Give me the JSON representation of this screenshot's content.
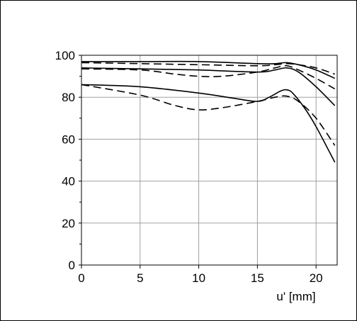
{
  "chart_data": {
    "type": "line",
    "title": "",
    "xlabel": "u' [mm]",
    "ylabel": "",
    "xlim": [
      0,
      21.8
    ],
    "ylim": [
      0,
      100
    ],
    "x_ticks": [
      0,
      5,
      10,
      15,
      20
    ],
    "y_ticks": [
      0,
      20,
      40,
      60,
      80,
      100
    ],
    "grid": true,
    "legend": "none",
    "series": [
      {
        "style": "solid",
        "color": "#000000",
        "x": [
          0,
          5,
          10,
          15,
          16.5,
          17.5,
          18.5,
          20,
          21.6
        ],
        "y": [
          97,
          97,
          97,
          96,
          96,
          96.5,
          95.5,
          93,
          89
        ]
      },
      {
        "style": "dashed",
        "color": "#000000",
        "x": [
          0,
          5,
          10,
          15,
          16.5,
          17.5,
          18.5,
          20,
          21.6
        ],
        "y": [
          96.5,
          96,
          95.5,
          95,
          95.5,
          96,
          95.5,
          94,
          91
        ]
      },
      {
        "style": "solid",
        "color": "#000000",
        "x": [
          0,
          5,
          10,
          15,
          16.5,
          17.5,
          18.5,
          20,
          21.6
        ],
        "y": [
          94,
          93.5,
          93,
          92,
          93,
          94,
          92,
          85,
          76
        ]
      },
      {
        "style": "dashed",
        "color": "#000000",
        "x": [
          0,
          5,
          8,
          10,
          12,
          15,
          16.5,
          17.5,
          18.5,
          20,
          21.6
        ],
        "y": [
          93.5,
          93,
          91,
          90,
          90,
          92,
          94,
          95,
          93,
          89,
          84
        ]
      },
      {
        "style": "solid",
        "color": "#000000",
        "x": [
          0,
          5,
          10,
          13,
          15,
          16,
          17,
          17.5,
          18,
          19,
          20,
          21.6
        ],
        "y": [
          86,
          85,
          82,
          79.5,
          78,
          80,
          83,
          83.5,
          82,
          75,
          66,
          49
        ]
      },
      {
        "style": "dashed",
        "color": "#000000",
        "x": [
          0,
          5,
          8,
          10,
          12,
          15,
          16.5,
          17.5,
          18.5,
          20,
          21.6
        ],
        "y": [
          86,
          81,
          76,
          74,
          75,
          78,
          80,
          80.5,
          78,
          70,
          57
        ]
      }
    ]
  }
}
